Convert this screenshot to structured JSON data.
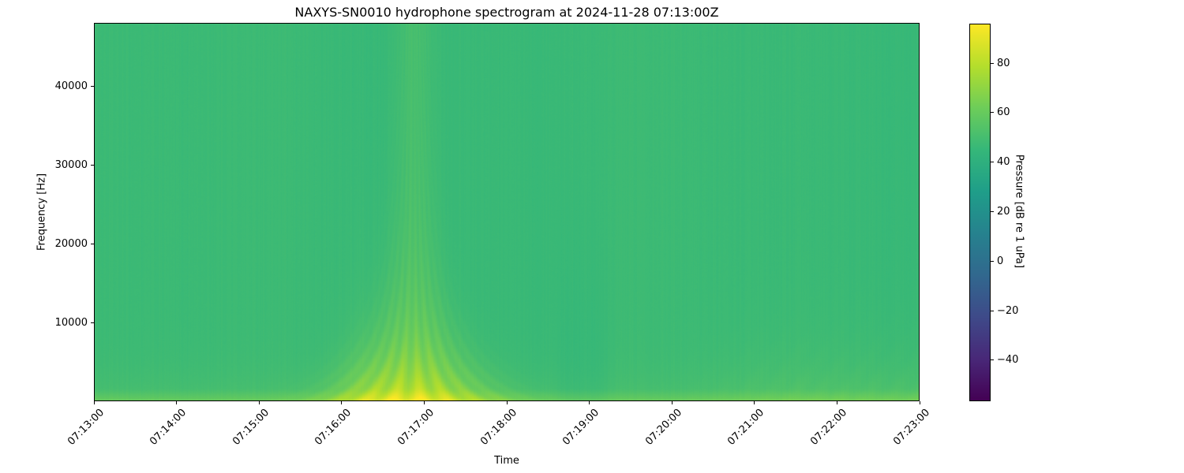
{
  "chart_data": {
    "type": "heatmap",
    "subtype": "spectrogram",
    "title": "NAXYS-SN0010 hydrophone spectrogram at 2024-11-28 07:13:00Z",
    "xlabel": "Time",
    "ylabel": "Frequency [Hz]",
    "x_tick_labels": [
      "07:13:00",
      "07:14:00",
      "07:15:00",
      "07:16:00",
      "07:17:00",
      "07:18:00",
      "07:19:00",
      "07:20:00",
      "07:21:00",
      "07:22:00",
      "07:23:00"
    ],
    "x_tick_seconds": [
      0,
      60,
      120,
      180,
      240,
      300,
      360,
      420,
      480,
      540,
      600
    ],
    "x_range_seconds": [
      0,
      600
    ],
    "y_tick_values": [
      10000,
      20000,
      30000,
      40000
    ],
    "y_tick_labels": [
      "10000",
      "20000",
      "30000",
      "40000"
    ],
    "y_range_hz": [
      0,
      48000
    ],
    "grid": false,
    "colorbar": {
      "label": "Pressure [dB re 1 uPa]",
      "tick_values": [
        80,
        60,
        40,
        20,
        0,
        -20,
        -40
      ],
      "tick_labels": [
        "80",
        "60",
        "40",
        "20",
        "0",
        "−20",
        "−40"
      ],
      "vmin": -56,
      "vmax": 96,
      "colormap": "viridis",
      "gradient_stops": [
        "#440154",
        "#482878",
        "#3e4a89",
        "#31688e",
        "#26828e",
        "#1f9e89",
        "#35b779",
        "#6dcd59",
        "#b4de2c",
        "#fde725"
      ]
    },
    "background_level_db": 47,
    "noise": {
      "column_jitter_db": 1.4,
      "pixel_jitter_db": 0.8,
      "slow_drift_db": 0.6
    },
    "features": [
      {
        "name": "low-frequency-band",
        "type": "band",
        "f_edge_hz": 1500,
        "linear_boost_db": 8,
        "exp_boost_db": 5,
        "exp_scale_hz": 3000
      },
      {
        "name": "main-broadband-event",
        "type": "plume",
        "t_center_s": 232,
        "width_base_s": 9,
        "width_extra_s": 30,
        "width_f_scale_hz": 9000,
        "peak_base_db": 4.5,
        "peak_extra_db": 30,
        "peak_f_scale_hz": 8000,
        "fringe_depth": 0.2,
        "fringe_k1": 0.3,
        "fringe_k2_hz": 16000
      },
      {
        "name": "pre-event-patch",
        "type": "gaussian",
        "t_center_s": 195,
        "t_sigma_s": 16,
        "peak_db": 6,
        "f_scale_hz": 9000
      },
      {
        "name": "quiet-teal-band",
        "type": "window",
        "t_start_s": 333,
        "t_end_s": 378,
        "edge_s": 10,
        "delta_db": -2.2,
        "f_scale_hz": 15000
      },
      {
        "name": "late-low-noise",
        "type": "ramp",
        "t_start_s": 420,
        "ramp_s": 80,
        "peak_db": 4.5,
        "f_scale_hz": 5500,
        "fringe_depth": 0.15,
        "fringe_f_hz": 700,
        "fringe_t_rate": 0.35
      }
    ]
  }
}
